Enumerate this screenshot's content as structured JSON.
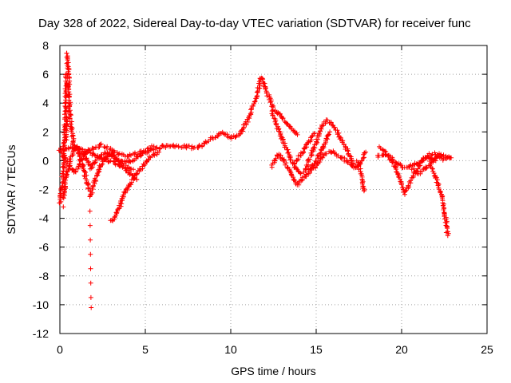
{
  "chart_data": {
    "type": "scatter",
    "title": "Day 328 of 2022, Sidereal Day-to-day VTEC variation (SDTVAR) for receiver func",
    "xlabel": "GPS time / hours",
    "ylabel": "SDTVAR / TECUs",
    "xlim": [
      0,
      25
    ],
    "ylim": [
      -12,
      8
    ],
    "xticks": [
      0,
      5,
      10,
      15,
      20,
      25
    ],
    "yticks": [
      -12,
      -10,
      -8,
      -6,
      -4,
      -2,
      0,
      2,
      4,
      6,
      8
    ],
    "grid": true,
    "marker": "+",
    "series": [
      {
        "name": "SDTVAR",
        "color": "#ff0000",
        "tracks": [
          [
            [
              0.0,
              0.8
            ],
            [
              1.0,
              0.9
            ],
            [
              1.6,
              0.6
            ],
            [
              2.2,
              0.3
            ],
            [
              2.8,
              0.0
            ],
            [
              3.3,
              -0.2
            ],
            [
              4.2,
              0.0
            ],
            [
              5.0,
              0.6
            ],
            [
              6.0,
              1.0
            ],
            [
              7.0,
              1.0
            ],
            [
              8.0,
              0.9
            ],
            [
              8.5,
              1.2
            ],
            [
              9.0,
              1.6
            ],
            [
              9.5,
              2.0
            ],
            [
              10.0,
              1.6
            ],
            [
              10.5,
              1.8
            ],
            [
              11.0,
              2.8
            ],
            [
              11.5,
              4.5
            ],
            [
              11.8,
              5.8
            ],
            [
              12.1,
              4.8
            ],
            [
              12.5,
              3.6
            ],
            [
              13.0,
              3.0
            ],
            [
              13.5,
              2.3
            ],
            [
              13.9,
              1.8
            ]
          ],
          [
            [
              0.0,
              -3.0
            ],
            [
              0.15,
              -1.5
            ],
            [
              0.3,
              2.0
            ],
            [
              0.38,
              6.0
            ],
            [
              0.42,
              7.5
            ],
            [
              0.5,
              6.0
            ],
            [
              0.6,
              3.0
            ],
            [
              0.8,
              1.2
            ],
            [
              1.2,
              0.2
            ],
            [
              1.6,
              -1.5
            ],
            [
              1.8,
              -2.4
            ],
            [
              2.1,
              -1.2
            ],
            [
              2.5,
              0.0
            ],
            [
              3.0,
              0.5
            ],
            [
              3.5,
              0.0
            ],
            [
              4.0,
              -0.5
            ],
            [
              4.3,
              -0.6
            ]
          ],
          [
            [
              0.2,
              -2.5
            ],
            [
              0.4,
              -1.0
            ],
            [
              0.6,
              0.2
            ],
            [
              1.0,
              1.0
            ],
            [
              1.4,
              0.5
            ],
            [
              1.8,
              -0.5
            ],
            [
              2.2,
              0.2
            ],
            [
              2.7,
              0.6
            ],
            [
              3.2,
              0.2
            ],
            [
              3.6,
              -0.4
            ],
            [
              4.1,
              -0.9
            ],
            [
              4.5,
              -1.3
            ]
          ],
          [
            [
              0.1,
              0.6
            ],
            [
              0.5,
              -0.3
            ],
            [
              0.9,
              -0.8
            ],
            [
              1.3,
              0.1
            ],
            [
              1.6,
              0.7
            ],
            [
              2.0,
              0.9
            ],
            [
              2.4,
              1.1
            ],
            [
              2.8,
              0.9
            ],
            [
              3.2,
              0.6
            ],
            [
              3.6,
              0.4
            ],
            [
              4.0,
              0.3
            ],
            [
              4.5,
              0.5
            ],
            [
              5.0,
              0.7
            ],
            [
              5.5,
              1.0
            ]
          ],
          [
            [
              1.75,
              -2.5
            ],
            [
              1.76,
              -3.5
            ],
            [
              1.77,
              -4.5
            ],
            [
              1.78,
              -5.5
            ],
            [
              1.79,
              -6.5
            ],
            [
              1.8,
              -7.5
            ],
            [
              1.81,
              -8.5
            ],
            [
              1.82,
              -9.5
            ],
            [
              1.83,
              -10.2
            ]
          ],
          [
            [
              3.0,
              -4.2
            ],
            [
              3.4,
              -3.5
            ],
            [
              3.8,
              -2.2
            ],
            [
              4.3,
              -1.2
            ],
            [
              4.8,
              -0.5
            ],
            [
              5.3,
              0.3
            ],
            [
              5.8,
              0.6
            ]
          ],
          [
            [
              0.2,
              -3.2
            ],
            [
              0.25,
              -2.0
            ],
            [
              0.3,
              -0.5
            ],
            [
              0.35,
              1.5
            ],
            [
              0.4,
              3.0
            ]
          ],
          [
            [
              12.4,
              3.5
            ],
            [
              12.7,
              2.4
            ],
            [
              13.1,
              1.2
            ],
            [
              13.5,
              0.2
            ],
            [
              13.8,
              -0.5
            ],
            [
              14.1,
              -0.9
            ]
          ],
          [
            [
              12.4,
              -0.4
            ],
            [
              12.8,
              0.5
            ],
            [
              13.2,
              -0.2
            ],
            [
              13.6,
              -1.0
            ],
            [
              13.9,
              -1.7
            ],
            [
              14.2,
              -1.2
            ],
            [
              14.6,
              -0.8
            ],
            [
              15.0,
              -0.3
            ],
            [
              15.5,
              0.5
            ],
            [
              16.0,
              0.6
            ],
            [
              16.5,
              0.2
            ],
            [
              17.0,
              -0.2
            ],
            [
              17.2,
              -0.5
            ]
          ],
          [
            [
              13.8,
              0.0
            ],
            [
              14.2,
              0.6
            ],
            [
              14.6,
              1.3
            ],
            [
              14.9,
              1.9
            ]
          ],
          [
            [
              14.3,
              -0.8
            ],
            [
              14.6,
              0.1
            ],
            [
              15.0,
              1.2
            ],
            [
              15.3,
              2.4
            ],
            [
              15.6,
              2.8
            ],
            [
              16.0,
              2.5
            ],
            [
              16.4,
              1.6
            ],
            [
              16.7,
              1.0
            ],
            [
              17.0,
              0.2
            ],
            [
              17.3,
              -0.5
            ],
            [
              17.6,
              -0.2
            ],
            [
              17.9,
              0.6
            ]
          ],
          [
            [
              14.6,
              -0.6
            ],
            [
              15.0,
              0.0
            ],
            [
              15.4,
              0.9
            ],
            [
              15.8,
              2.0
            ]
          ],
          [
            [
              17.4,
              0.0
            ],
            [
              17.6,
              -0.8
            ],
            [
              17.7,
              -1.5
            ],
            [
              17.8,
              -2.1
            ]
          ],
          [
            [
              18.6,
              0.3
            ],
            [
              19.0,
              0.5
            ],
            [
              19.4,
              0.2
            ],
            [
              19.8,
              -0.2
            ],
            [
              20.1,
              -0.5
            ],
            [
              20.4,
              -0.4
            ],
            [
              20.8,
              -0.2
            ],
            [
              21.2,
              0.0
            ],
            [
              21.6,
              0.4
            ],
            [
              22.0,
              0.5
            ],
            [
              22.4,
              0.1
            ],
            [
              22.8,
              0.2
            ]
          ],
          [
            [
              18.7,
              0.9
            ],
            [
              19.1,
              0.5
            ],
            [
              19.5,
              -0.2
            ],
            [
              19.9,
              -1.2
            ],
            [
              20.2,
              -2.3
            ],
            [
              20.5,
              -1.5
            ],
            [
              20.9,
              -0.6
            ],
            [
              21.3,
              0.2
            ],
            [
              21.7,
              0.2
            ],
            [
              22.0,
              0.0
            ]
          ],
          [
            [
              20.6,
              -0.6
            ],
            [
              21.0,
              -0.9
            ],
            [
              21.4,
              -0.5
            ],
            [
              21.8,
              0.0
            ],
            [
              22.2,
              0.4
            ],
            [
              22.5,
              0.3
            ],
            [
              22.9,
              0.2
            ]
          ],
          [
            [
              21.7,
              -0.5
            ],
            [
              22.0,
              -1.2
            ],
            [
              22.2,
              -1.9
            ],
            [
              22.4,
              -2.8
            ],
            [
              22.5,
              -3.6
            ],
            [
              22.6,
              -4.3
            ],
            [
              22.7,
              -5.2
            ]
          ]
        ]
      }
    ]
  }
}
